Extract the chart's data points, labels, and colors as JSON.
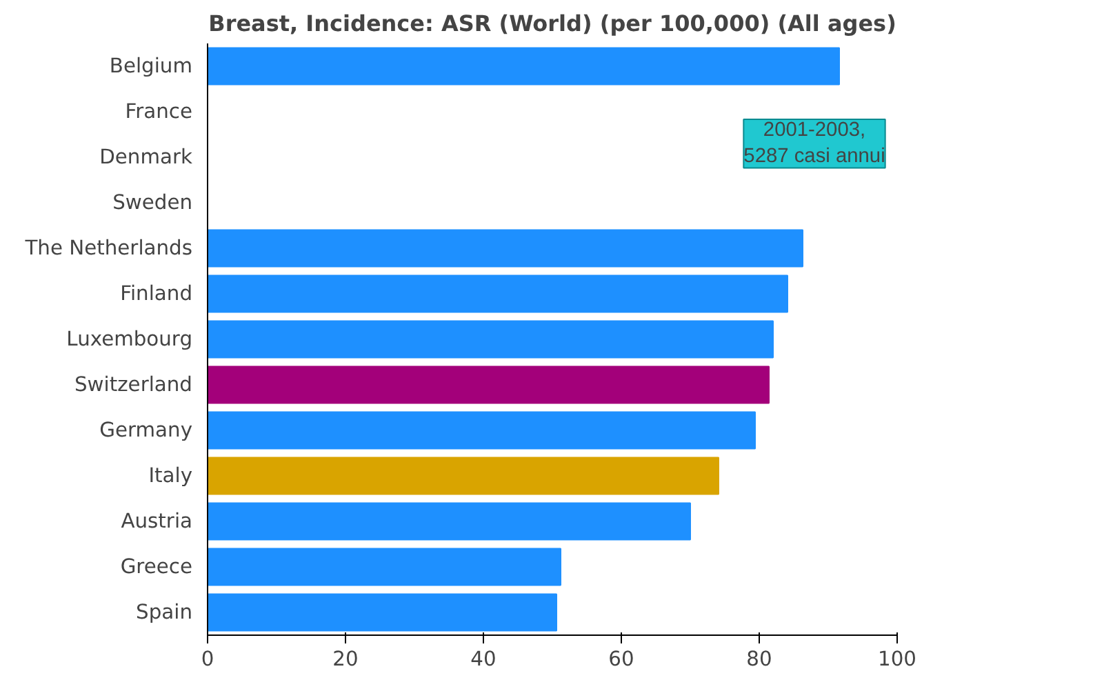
{
  "chart_data": {
    "type": "bar",
    "orientation": "horizontal",
    "title": "Breast, Incidence: ASR (World) (per 100,000) (All ages)",
    "categories": [
      "Belgium",
      "France",
      "Denmark",
      "Sweden",
      "The Netherlands",
      "Finland",
      "Luxembourg",
      "Switzerland",
      "Germany",
      "Italy",
      "Austria",
      "Greece",
      "Spain"
    ],
    "values": [
      91.6,
      null,
      null,
      null,
      86.3,
      84.1,
      82.0,
      81.4,
      79.4,
      74.1,
      70.0,
      51.2,
      50.6
    ],
    "colors": [
      "#1e90ff",
      "#1e90ff",
      "#1e90ff",
      "#1e90ff",
      "#1e90ff",
      "#1e90ff",
      "#1e90ff",
      "#a3007a",
      "#1e90ff",
      "#d9a400",
      "#1e90ff",
      "#1e90ff",
      "#1e90ff"
    ],
    "xlim": [
      0,
      100
    ],
    "xticks": [
      0,
      20,
      40,
      60,
      80,
      100
    ],
    "grid": false,
    "annotations": [
      "2001-2003,\n5287 casi annui"
    ]
  }
}
